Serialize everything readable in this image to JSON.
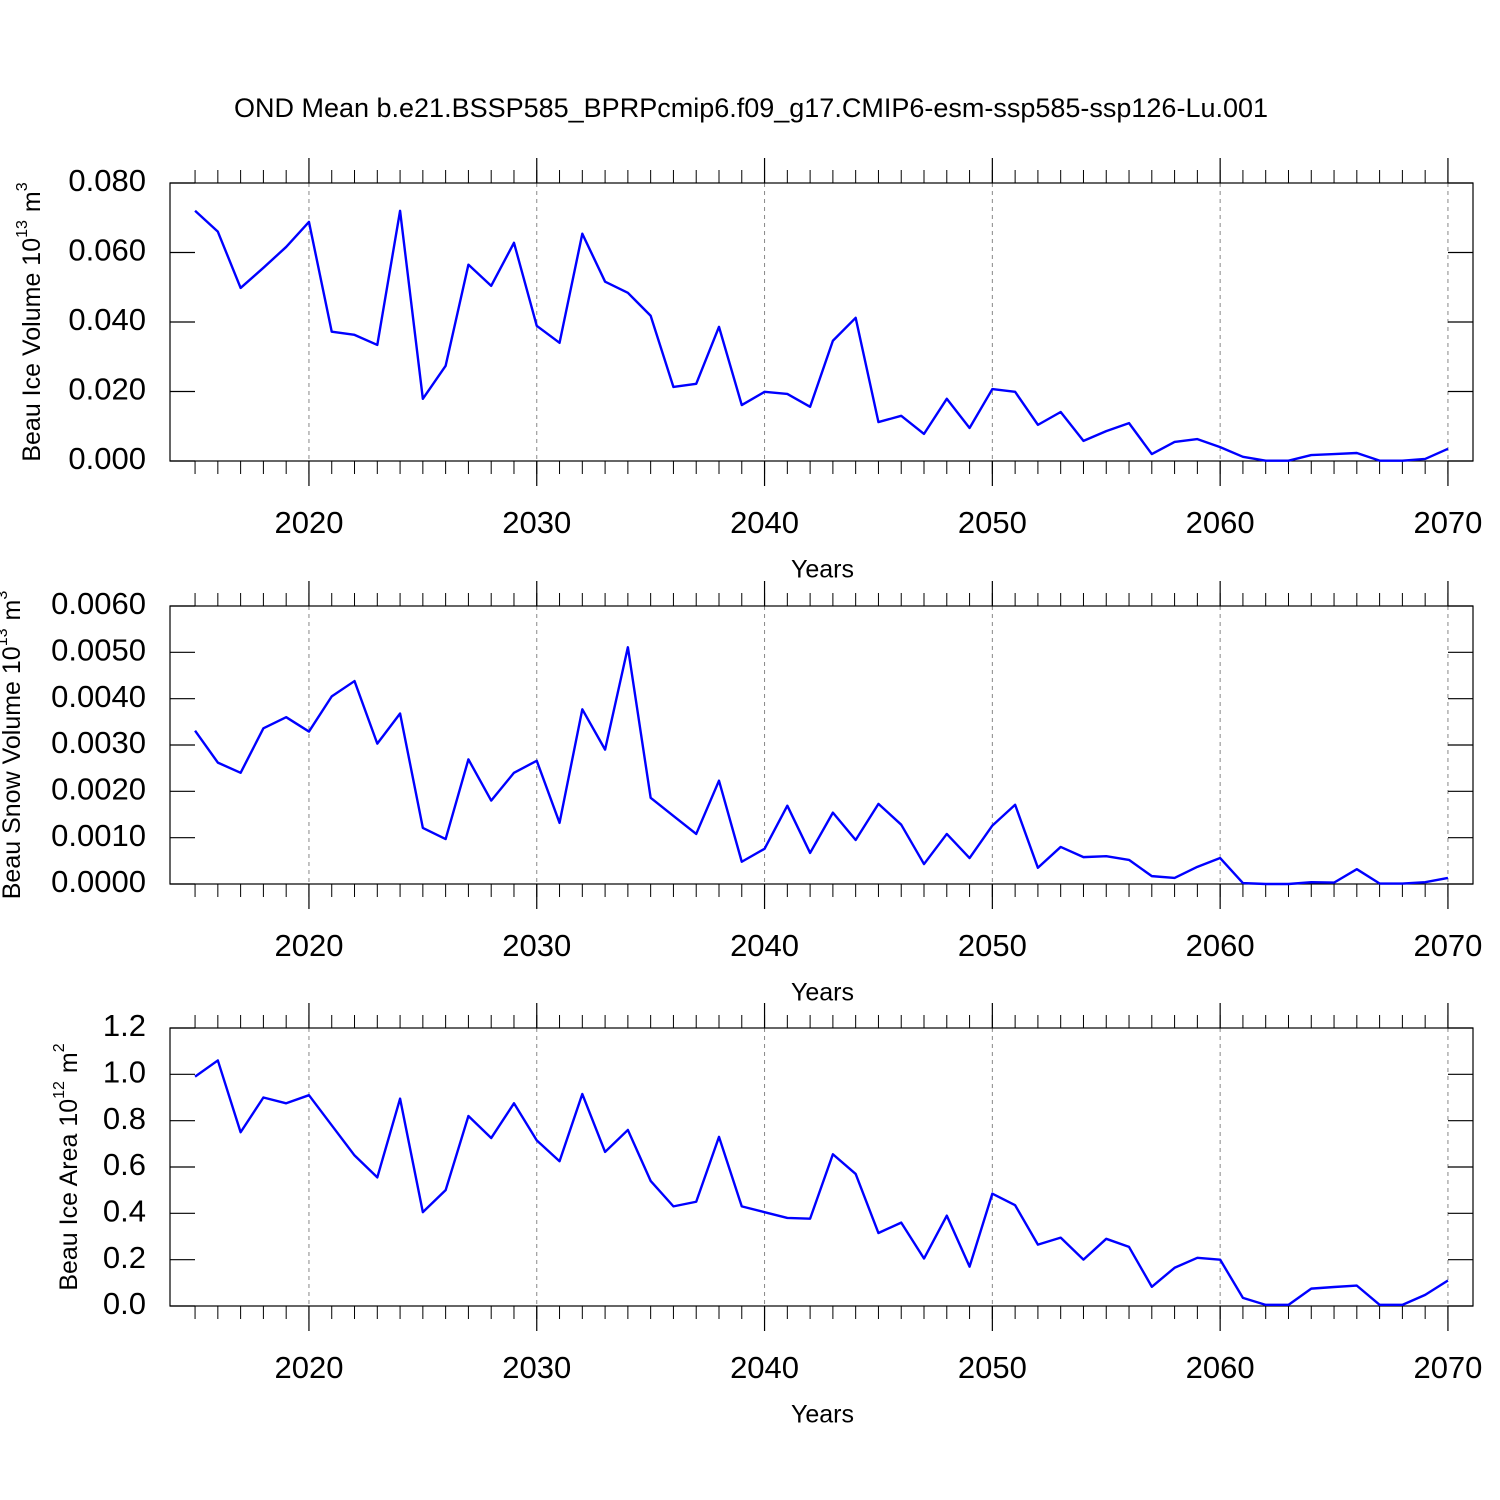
{
  "title": "OND Mean b.e21.BSSP585_BPRPcmip6.f09_g17.CMIP6-esm-ssp585-ssp126-Lu.001",
  "chart_data": [
    {
      "type": "line",
      "ylabel": [
        "Beau Ice Volume 10",
        "13",
        "m",
        "3"
      ],
      "xlabel": "Years",
      "xlim": [
        2013.9,
        2071.1
      ],
      "xticks": [
        2020,
        2030,
        2040,
        2050,
        2060,
        2070
      ],
      "ylim": [
        0,
        0.08
      ],
      "yticks": [
        {
          "value": 0,
          "label": "0.000"
        },
        {
          "value": 0.02,
          "label": "0.020"
        },
        {
          "value": 0.04,
          "label": "0.040"
        },
        {
          "value": 0.06,
          "label": "0.060"
        },
        {
          "value": 0.08,
          "label": "0.080"
        }
      ],
      "grid": true,
      "x": [
        2015,
        2016,
        2017,
        2018,
        2019,
        2020,
        2021,
        2022,
        2023,
        2024,
        2025,
        2026,
        2027,
        2028,
        2029,
        2030,
        2031,
        2032,
        2033,
        2034,
        2035,
        2036,
        2037,
        2038,
        2039,
        2040,
        2041,
        2042,
        2043,
        2044,
        2045,
        2046,
        2047,
        2048,
        2049,
        2050,
        2051,
        2052,
        2053,
        2054,
        2055,
        2056,
        2057,
        2058,
        2059,
        2060,
        2061,
        2062,
        2063,
        2064,
        2065,
        2066,
        2067,
        2068,
        2069,
        2070
      ],
      "series": [
        {
          "color": "#0000ff",
          "values": [
            0.072,
            0.066,
            0.0498,
            0.0556,
            0.0616,
            0.0688,
            0.0372,
            0.0363,
            0.0334,
            0.072,
            0.0179,
            0.0274,
            0.0565,
            0.0504,
            0.0628,
            0.0389,
            0.034,
            0.0654,
            0.0516,
            0.0484,
            0.0418,
            0.0213,
            0.0222,
            0.0386,
            0.0161,
            0.0199,
            0.0193,
            0.0156,
            0.0346,
            0.0412,
            0.0112,
            0.013,
            0.0078,
            0.0179,
            0.0095,
            0.0207,
            0.0199,
            0.0104,
            0.0141,
            0.0058,
            0.0086,
            0.0109,
            0.002,
            0.0055,
            0.0063,
            0.004,
            0.0012,
            0.0001,
            0.0001,
            0.0017,
            0.002,
            0.0023,
            0.0001,
            0.0001,
            0.0006,
            0.0035
          ]
        }
      ]
    },
    {
      "type": "line",
      "ylabel": [
        "Beau Snow Volume 10",
        "13",
        "m",
        "3"
      ],
      "xlabel": "Years",
      "xlim": [
        2013.9,
        2071.1
      ],
      "xticks": [
        2020,
        2030,
        2040,
        2050,
        2060,
        2070
      ],
      "ylim": [
        0,
        0.006
      ],
      "yticks": [
        {
          "value": 0,
          "label": "0.0000"
        },
        {
          "value": 0.001,
          "label": "0.0010"
        },
        {
          "value": 0.002,
          "label": "0.0020"
        },
        {
          "value": 0.003,
          "label": "0.0030"
        },
        {
          "value": 0.004,
          "label": "0.0040"
        },
        {
          "value": 0.005,
          "label": "0.0050"
        },
        {
          "value": 0.006,
          "label": "0.0060"
        }
      ],
      "grid": true,
      "x": [
        2015,
        2016,
        2017,
        2018,
        2019,
        2020,
        2021,
        2022,
        2023,
        2024,
        2025,
        2026,
        2027,
        2028,
        2029,
        2030,
        2031,
        2032,
        2033,
        2034,
        2035,
        2036,
        2037,
        2038,
        2039,
        2040,
        2041,
        2042,
        2043,
        2044,
        2045,
        2046,
        2047,
        2048,
        2049,
        2050,
        2051,
        2052,
        2053,
        2054,
        2055,
        2056,
        2057,
        2058,
        2059,
        2060,
        2061,
        2062,
        2063,
        2064,
        2065,
        2066,
        2067,
        2068,
        2069,
        2070
      ],
      "series": [
        {
          "color": "#0000ff",
          "values": [
            0.00331,
            0.00262,
            0.0024,
            0.00336,
            0.0036,
            0.00329,
            0.00405,
            0.00438,
            0.00303,
            0.00368,
            0.00121,
            0.00097,
            0.00269,
            0.0018,
            0.0024,
            0.00266,
            0.00132,
            0.00377,
            0.0029,
            0.00511,
            0.00186,
            0.00147,
            0.00108,
            0.00223,
            0.00048,
            0.00076,
            0.00169,
            0.00067,
            0.00154,
            0.00095,
            0.00173,
            0.00128,
            0.00043,
            0.00108,
            0.00056,
            0.00126,
            0.00171,
            0.00035,
            0.0008,
            0.00058,
            0.0006,
            0.00052,
            0.00017,
            0.00013,
            0.00037,
            0.00056,
            2e-05,
            0,
            0,
            4e-05,
            3e-05,
            0.00032,
            1e-05,
            1e-05,
            4e-05,
            0.00013
          ]
        }
      ]
    },
    {
      "type": "line",
      "ylabel": [
        "Beau Ice Area 10",
        "12",
        "m",
        "2"
      ],
      "xlabel": "Years",
      "xlim": [
        2013.9,
        2071.1
      ],
      "xticks": [
        2020,
        2030,
        2040,
        2050,
        2060,
        2070
      ],
      "ylim": [
        0,
        1.2
      ],
      "yticks": [
        {
          "value": 0,
          "label": "0.0"
        },
        0.2,
        0.4,
        0.6,
        0.8,
        {
          "value": 1,
          "label": "1.0"
        },
        1.2
      ],
      "grid": true,
      "x": [
        2015,
        2016,
        2017,
        2018,
        2019,
        2020,
        2021,
        2022,
        2023,
        2024,
        2025,
        2026,
        2027,
        2028,
        2029,
        2030,
        2031,
        2032,
        2033,
        2034,
        2035,
        2036,
        2037,
        2038,
        2039,
        2040,
        2041,
        2042,
        2043,
        2044,
        2045,
        2046,
        2047,
        2048,
        2049,
        2050,
        2051,
        2052,
        2053,
        2054,
        2055,
        2056,
        2057,
        2058,
        2059,
        2060,
        2061,
        2062,
        2063,
        2064,
        2065,
        2066,
        2067,
        2068,
        2069,
        2070
      ],
      "series": [
        {
          "color": "#0000ff",
          "values": [
            0.99,
            1.06,
            0.75,
            0.9,
            0.875,
            0.91,
            0.78,
            0.65,
            0.555,
            0.895,
            0.405,
            0.5,
            0.82,
            0.725,
            0.875,
            0.715,
            0.625,
            0.915,
            0.665,
            0.76,
            0.54,
            0.43,
            0.45,
            0.73,
            0.43,
            0.405,
            0.38,
            0.377,
            0.655,
            0.57,
            0.315,
            0.36,
            0.205,
            0.39,
            0.17,
            0.485,
            0.435,
            0.265,
            0.295,
            0.2,
            0.29,
            0.255,
            0.083,
            0.165,
            0.208,
            0.2,
            0.035,
            0.005,
            0.005,
            0.075,
            0.082,
            0.088,
            0.005,
            0.005,
            0.048,
            0.11
          ]
        }
      ]
    }
  ]
}
